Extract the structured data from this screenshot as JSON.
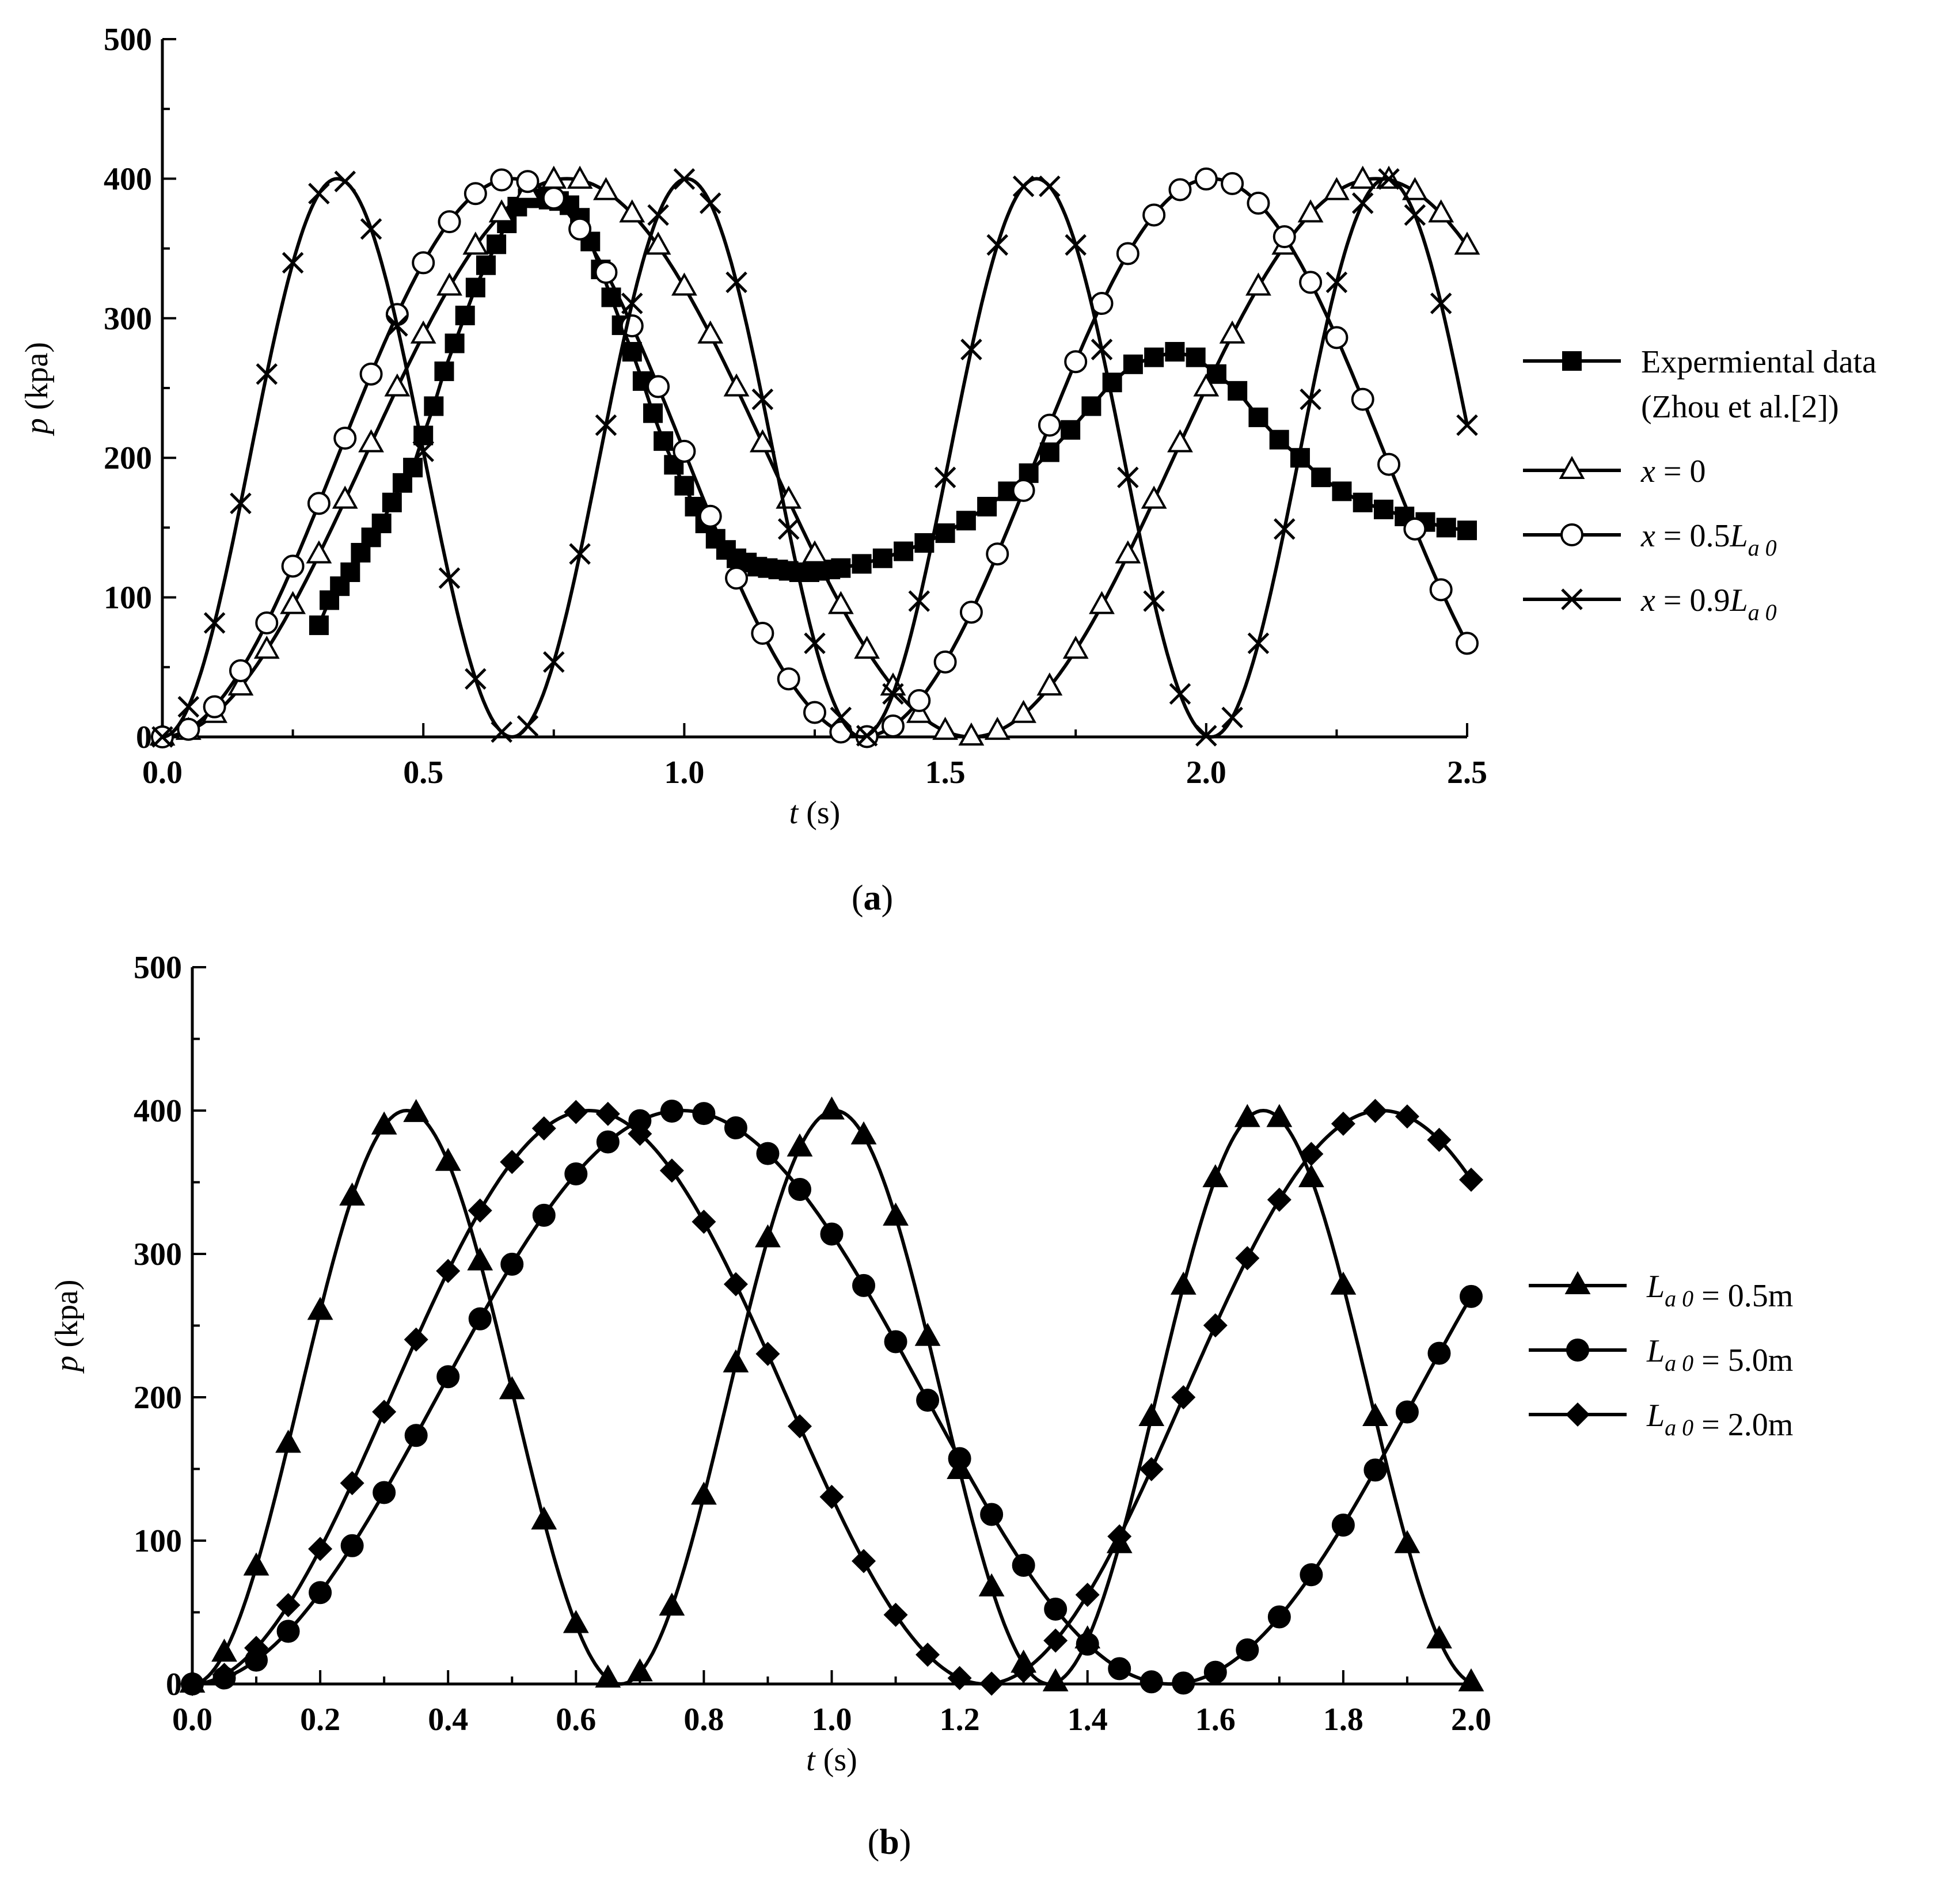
{
  "chart_data": [
    {
      "panel": "a",
      "type": "line",
      "caption": {
        "open": "(",
        "letter": "a",
        "close": ")"
      },
      "xlabel": {
        "var": "t",
        "unit": " (s)"
      },
      "ylabel": {
        "var": "p",
        "unit": " (kpa)"
      },
      "xlim": [
        0,
        2.5
      ],
      "ylim": [
        0,
        500
      ],
      "xticks": [
        0,
        0.5,
        1.0,
        1.5,
        2.0,
        2.5
      ],
      "xtick_labels": [
        "0.0",
        "0.5",
        "1.0",
        "1.5",
        "2.0",
        "2.5"
      ],
      "yticks": [
        0,
        100,
        200,
        300,
        400,
        500
      ],
      "ytick_labels": [
        "0",
        "100",
        "200",
        "300",
        "400",
        "500"
      ],
      "legend_position": "right",
      "series": [
        {
          "name": "Expermiental data (Zhou et al.[2])",
          "legend": [
            {
              "text": "Expermiental data"
            },
            {
              "text": "(Zhou et al.[2])"
            }
          ],
          "marker": "filled-square",
          "x": [
            0.3,
            0.32,
            0.34,
            0.36,
            0.38,
            0.4,
            0.42,
            0.44,
            0.46,
            0.48,
            0.5,
            0.52,
            0.54,
            0.56,
            0.58,
            0.6,
            0.62,
            0.64,
            0.66,
            0.68,
            0.7,
            0.72,
            0.74,
            0.76,
            0.78,
            0.8,
            0.82,
            0.84,
            0.86,
            0.88,
            0.9,
            0.92,
            0.94,
            0.96,
            0.98,
            1.0,
            1.02,
            1.04,
            1.06,
            1.08,
            1.1,
            1.12,
            1.14,
            1.16,
            1.18,
            1.2,
            1.22,
            1.24,
            1.26,
            1.28,
            1.3,
            1.34,
            1.38,
            1.42,
            1.46,
            1.5,
            1.54,
            1.58,
            1.62,
            1.66,
            1.7,
            1.74,
            1.78,
            1.82,
            1.86,
            1.9,
            1.94,
            1.98,
            2.02,
            2.06,
            2.1,
            2.14,
            2.18,
            2.22,
            2.26,
            2.3,
            2.34,
            2.38,
            2.42,
            2.46,
            2.5
          ],
          "y": [
            80,
            98,
            108,
            118,
            132,
            143,
            153,
            168,
            182,
            193,
            216,
            237,
            262,
            282,
            302,
            322,
            338,
            353,
            368,
            380,
            386,
            386,
            385,
            384,
            381,
            372,
            355,
            335,
            315,
            295,
            276,
            255,
            232,
            212,
            195,
            180,
            165,
            153,
            142,
            134,
            128,
            125,
            122,
            121,
            120,
            119,
            118,
            118,
            119,
            120,
            121,
            124,
            128,
            133,
            139,
            146,
            155,
            165,
            176,
            189,
            204,
            220,
            237,
            254,
            267,
            272,
            276,
            272,
            260,
            248,
            229,
            213,
            200,
            186,
            176,
            168,
            163,
            158,
            154,
            150,
            148
          ]
        },
        {
          "name": "x = 0",
          "legend": [
            {
              "text": "x",
              "italic": true
            },
            {
              "text": " = 0"
            }
          ],
          "marker": "open-triangle",
          "function": "sin2",
          "period": 1.55,
          "amplitude": 400,
          "marker_step": 0.05
        },
        {
          "name": "x = 0.5La0",
          "legend": [
            {
              "text": "x",
              "italic": true
            },
            {
              "text": " = 0.5"
            },
            {
              "text": "L",
              "italic": true
            },
            {
              "text": "a 0",
              "sub": true
            }
          ],
          "marker": "open-circle",
          "function": "sin2",
          "period": 1.34,
          "amplitude": 400,
          "marker_step": 0.05
        },
        {
          "name": "x = 0.9La0",
          "legend": [
            {
              "text": "x",
              "italic": true
            },
            {
              "text": " = 0.9"
            },
            {
              "text": "L",
              "italic": true
            },
            {
              "text": "a 0",
              "sub": true
            }
          ],
          "marker": "cross",
          "function": "sin2",
          "period": 0.67,
          "amplitude": 400,
          "marker_step": 0.05
        }
      ]
    },
    {
      "panel": "b",
      "type": "line",
      "caption": {
        "open": "(",
        "letter": "b",
        "close": ")"
      },
      "xlabel": {
        "var": "t",
        "unit": " (s)"
      },
      "ylabel": {
        "var": "p",
        "unit": " (kpa)"
      },
      "xlim": [
        0,
        2.0
      ],
      "ylim": [
        0,
        500
      ],
      "xticks": [
        0,
        0.2,
        0.4,
        0.6,
        0.8,
        1.0,
        1.2,
        1.4,
        1.6,
        1.8,
        2.0
      ],
      "xtick_labels": [
        "0.0",
        "0.2",
        "0.4",
        "0.6",
        "0.8",
        "1.0",
        "1.2",
        "1.4",
        "1.6",
        "1.8",
        "2.0"
      ],
      "yticks": [
        0,
        100,
        200,
        300,
        400,
        500
      ],
      "ytick_labels": [
        "0",
        "100",
        "200",
        "300",
        "400",
        "500"
      ],
      "legend_position": "right",
      "series": [
        {
          "name": "La0 = 0.5m",
          "legend": [
            {
              "text": "L",
              "italic": true
            },
            {
              "text": "a 0",
              "sub": true
            },
            {
              "text": " = 0.5m"
            }
          ],
          "marker": "filled-triangle",
          "function": "sin2",
          "period": 0.67,
          "amplitude": 400,
          "marker_step": 0.05
        },
        {
          "name": "La0 = 5.0m",
          "legend": [
            {
              "text": "L",
              "italic": true
            },
            {
              "text": "a 0",
              "sub": true
            },
            {
              "text": " = 5.0m"
            }
          ],
          "marker": "filled-circle",
          "function": "sin2",
          "period": 1.53,
          "amplitude": 400,
          "marker_step": 0.05
        },
        {
          "name": "La0 = 2.0m",
          "legend": [
            {
              "text": "L",
              "italic": true
            },
            {
              "text": "a 0",
              "sub": true
            },
            {
              "text": " = 2.0m"
            }
          ],
          "marker": "filled-diamond",
          "function": "sin2",
          "period": 1.24,
          "amplitude": 400,
          "marker_step": 0.05
        }
      ]
    }
  ]
}
